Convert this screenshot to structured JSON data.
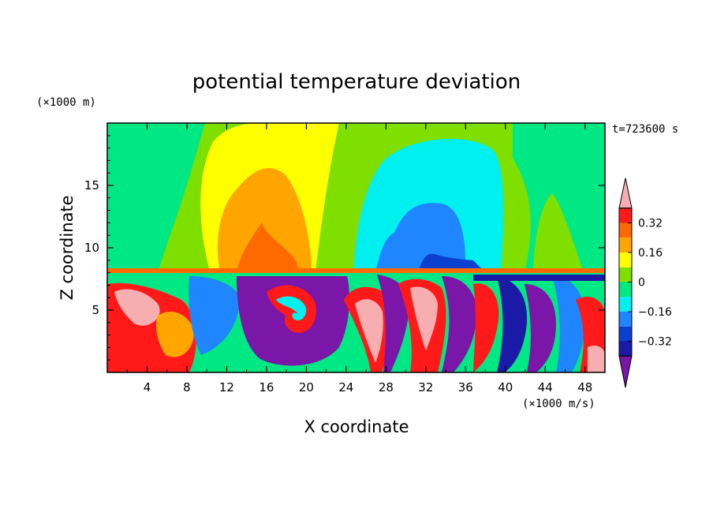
{
  "chart_data": {
    "type": "heatmap",
    "title": "potential temperature deviation",
    "xlabel": "X coordinate",
    "ylabel": "Z coordinate",
    "x_units": "(×1000 m/s)",
    "y_units": "(×1000 m)",
    "time_label": "t=723600 s",
    "xlim": [
      0,
      50
    ],
    "ylim": [
      0,
      20
    ],
    "x_ticks": [
      4,
      8,
      12,
      16,
      20,
      24,
      28,
      32,
      36,
      40,
      44,
      48
    ],
    "x_tick_labels": [
      "4",
      "8",
      "12",
      "16",
      "20",
      "24",
      "28",
      "32",
      "36",
      "40",
      "44",
      "48"
    ],
    "y_ticks": [
      5,
      10,
      15
    ],
    "y_tick_labels": [
      "5",
      "10",
      "15"
    ],
    "colorbar": {
      "levels": [
        -0.48,
        -0.4,
        -0.32,
        -0.24,
        -0.16,
        -0.08,
        0,
        0.08,
        0.16,
        0.24,
        0.32,
        0.4,
        0.48
      ],
      "colors": [
        "#7a16a8",
        "#1a1aa6",
        "#0a3fd0",
        "#1f86ff",
        "#00f0f0",
        "#00e883",
        "#7fe000",
        "#ffff00",
        "#ffa500",
        "#ff6a00",
        "#ff1a1a",
        "#f7aeb0"
      ],
      "tick_values": [
        0.32,
        0.16,
        0,
        -0.16,
        -0.32
      ],
      "tick_labels": [
        "0.32",
        "0.16",
        "0",
        "−0.16",
        "−0.32"
      ]
    },
    "field_description": "Upper layer (z > 8.3) shows broad smooth anomalies: positive near x 12-22, negative near x 30-40. Lower layer (z < 8.3) is turbulent with a large negative vortex near x 19, z 4 and alternating strong positive/negative plumes."
  }
}
